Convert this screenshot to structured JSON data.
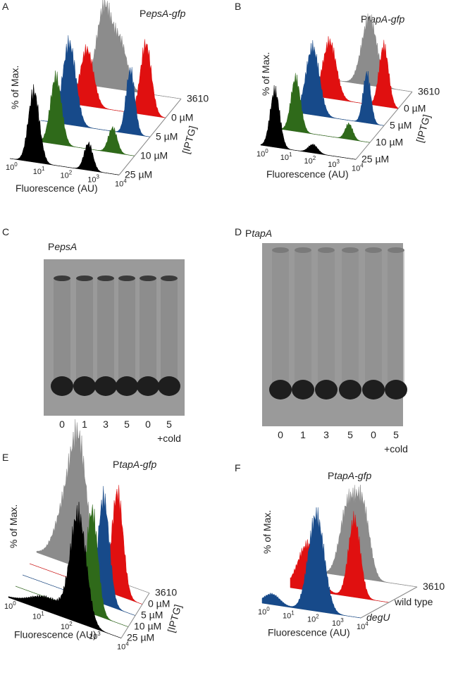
{
  "panels": [
    {
      "letter": "A",
      "title": {
        "prefix": "P",
        "italic": "epsA-gfp"
      },
      "y_label": "% of Max.",
      "x_label": "Fluorescence (AU)",
      "x_ticks": [
        {
          "base": "10",
          "exp": "0"
        },
        {
          "base": "10",
          "exp": "1"
        },
        {
          "base": "10",
          "exp": "2"
        },
        {
          "base": "10",
          "exp": "3"
        },
        {
          "base": "10",
          "exp": "4"
        }
      ],
      "depth_labels": [
        "3610",
        "0 µM",
        "5 µM",
        "10 µM",
        "25 µM"
      ],
      "depth_title": "[IPTG]"
    },
    {
      "letter": "B",
      "title": {
        "prefix": "P",
        "italic": "tapA-gfp"
      },
      "y_label": "% of Max.",
      "x_label": "Fluorescence (AU)",
      "x_ticks": [
        {
          "base": "10",
          "exp": "0"
        },
        {
          "base": "10",
          "exp": "1"
        },
        {
          "base": "10",
          "exp": "2"
        },
        {
          "base": "10",
          "exp": "3"
        },
        {
          "base": "10",
          "exp": "4"
        }
      ],
      "depth_labels": [
        "3610",
        "0 µM",
        "5 µM",
        "10 µM",
        "25 µM"
      ],
      "depth_title": "[IPTG]"
    },
    {
      "letter": "C",
      "title": {
        "prefix": "P",
        "italic": "epsA"
      },
      "lanes": [
        "0",
        "1",
        "3",
        "5",
        "0",
        "5"
      ],
      "lane_note": "+cold"
    },
    {
      "letter": "D",
      "title": {
        "prefix": "P",
        "italic": "tapA"
      },
      "lanes": [
        "0",
        "1",
        "3",
        "5",
        "0",
        "5"
      ],
      "lane_note": "+cold"
    },
    {
      "letter": "E",
      "title": {
        "prefix": "P",
        "italic": "tapA-gfp"
      },
      "y_label": "% of Max.",
      "x_label": "Fluorescence (AU)",
      "x_ticks": [
        {
          "base": "10",
          "exp": "0"
        },
        {
          "base": "10",
          "exp": "1"
        },
        {
          "base": "10",
          "exp": "2"
        },
        {
          "base": "10",
          "exp": "3"
        },
        {
          "base": "10",
          "exp": "4"
        }
      ],
      "depth_labels": [
        "3610",
        "0 µM",
        "5 µM",
        "10 µM",
        "25 µM"
      ],
      "depth_title": "[IPTG]"
    },
    {
      "letter": "F",
      "title": {
        "prefix": "P",
        "italic": "tapA-gfp"
      },
      "y_label": "% of Max.",
      "x_label": "Fluorescence (AU)",
      "x_ticks": [
        {
          "base": "10",
          "exp": "0"
        },
        {
          "base": "10",
          "exp": "1"
        },
        {
          "base": "10",
          "exp": "2"
        },
        {
          "base": "10",
          "exp": "3"
        },
        {
          "base": "10",
          "exp": "4"
        }
      ],
      "depth_labels": [
        "3610",
        "wild type",
        "degU"
      ]
    }
  ]
}
